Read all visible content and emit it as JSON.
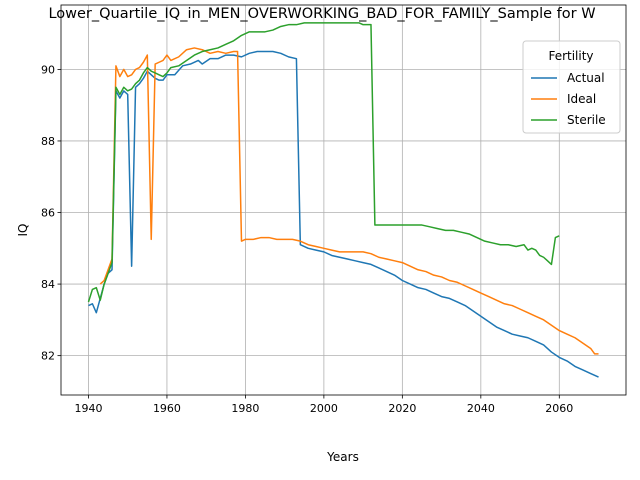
{
  "chart_data": {
    "type": "line",
    "title": "Lower_Quartile_IQ_in_MEN_OVERWORKING_BAD_FOR_FAMILY_Sample for W",
    "xlabel": "Years",
    "ylabel": "IQ",
    "xlim": [
      1933,
      2077
    ],
    "ylim": [
      80.9,
      91.8
    ],
    "xticks": [
      1940,
      1960,
      1980,
      2000,
      2020,
      2040,
      2060
    ],
    "yticks": [
      82,
      84,
      86,
      88,
      90
    ],
    "grid": true,
    "legend": {
      "title": "Fertility",
      "placement": "top-right"
    },
    "series": [
      {
        "name": "Actual",
        "color": "#1f77b4",
        "points": [
          [
            1940,
            83.4
          ],
          [
            1941,
            83.45
          ],
          [
            1942,
            83.2
          ],
          [
            1943,
            83.6
          ],
          [
            1944,
            84.0
          ],
          [
            1945,
            84.3
          ],
          [
            1946,
            84.4
          ],
          [
            1947,
            89.4
          ],
          [
            1948,
            89.2
          ],
          [
            1949,
            89.4
          ],
          [
            1950,
            89.3
          ],
          [
            1951,
            84.5
          ],
          [
            1952,
            89.5
          ],
          [
            1953,
            89.6
          ],
          [
            1954,
            89.75
          ],
          [
            1955,
            89.95
          ],
          [
            1956,
            89.85
          ],
          [
            1957,
            89.75
          ],
          [
            1958,
            89.7
          ],
          [
            1959,
            89.7
          ],
          [
            1960,
            89.85
          ],
          [
            1962,
            89.85
          ],
          [
            1964,
            90.1
          ],
          [
            1966,
            90.15
          ],
          [
            1968,
            90.25
          ],
          [
            1969,
            90.15
          ],
          [
            1971,
            90.3
          ],
          [
            1973,
            90.3
          ],
          [
            1975,
            90.4
          ],
          [
            1977,
            90.4
          ],
          [
            1979,
            90.35
          ],
          [
            1981,
            90.45
          ],
          [
            1983,
            90.5
          ],
          [
            1985,
            90.5
          ],
          [
            1987,
            90.5
          ],
          [
            1989,
            90.45
          ],
          [
            1991,
            90.35
          ],
          [
            1993,
            90.3
          ],
          [
            1994,
            85.1
          ],
          [
            1996,
            85.0
          ],
          [
            1998,
            84.95
          ],
          [
            2000,
            84.9
          ],
          [
            2002,
            84.8
          ],
          [
            2004,
            84.75
          ],
          [
            2006,
            84.7
          ],
          [
            2008,
            84.65
          ],
          [
            2010,
            84.6
          ],
          [
            2012,
            84.55
          ],
          [
            2014,
            84.45
          ],
          [
            2016,
            84.35
          ],
          [
            2018,
            84.25
          ],
          [
            2020,
            84.1
          ],
          [
            2022,
            84.0
          ],
          [
            2024,
            83.9
          ],
          [
            2026,
            83.85
          ],
          [
            2028,
            83.75
          ],
          [
            2030,
            83.65
          ],
          [
            2032,
            83.6
          ],
          [
            2034,
            83.5
          ],
          [
            2036,
            83.4
          ],
          [
            2038,
            83.25
          ],
          [
            2040,
            83.1
          ],
          [
            2042,
            82.95
          ],
          [
            2044,
            82.8
          ],
          [
            2046,
            82.7
          ],
          [
            2048,
            82.6
          ],
          [
            2050,
            82.55
          ],
          [
            2052,
            82.5
          ],
          [
            2054,
            82.4
          ],
          [
            2056,
            82.3
          ],
          [
            2058,
            82.1
          ],
          [
            2060,
            81.95
          ],
          [
            2062,
            81.85
          ],
          [
            2064,
            81.7
          ],
          [
            2066,
            81.6
          ],
          [
            2068,
            81.5
          ],
          [
            2070,
            81.4
          ]
        ]
      },
      {
        "name": "Ideal",
        "color": "#ff7f0e",
        "points": [
          [
            1943,
            84.0
          ],
          [
            1944,
            84.1
          ],
          [
            1945,
            84.4
          ],
          [
            1946,
            84.7
          ],
          [
            1947,
            90.1
          ],
          [
            1948,
            89.8
          ],
          [
            1949,
            90.0
          ],
          [
            1950,
            89.8
          ],
          [
            1951,
            89.85
          ],
          [
            1952,
            90.0
          ],
          [
            1953,
            90.05
          ],
          [
            1954,
            90.2
          ],
          [
            1955,
            90.4
          ],
          [
            1956,
            85.25
          ],
          [
            1957,
            90.15
          ],
          [
            1958,
            90.2
          ],
          [
            1959,
            90.25
          ],
          [
            1960,
            90.4
          ],
          [
            1961,
            90.25
          ],
          [
            1963,
            90.35
          ],
          [
            1965,
            90.55
          ],
          [
            1967,
            90.6
          ],
          [
            1969,
            90.55
          ],
          [
            1971,
            90.45
          ],
          [
            1973,
            90.5
          ],
          [
            1975,
            90.45
          ],
          [
            1977,
            90.5
          ],
          [
            1978,
            90.5
          ],
          [
            1979,
            85.2
          ],
          [
            1980,
            85.25
          ],
          [
            1982,
            85.25
          ],
          [
            1984,
            85.3
          ],
          [
            1986,
            85.3
          ],
          [
            1988,
            85.25
          ],
          [
            1990,
            85.25
          ],
          [
            1992,
            85.25
          ],
          [
            1994,
            85.2
          ],
          [
            1996,
            85.1
          ],
          [
            1998,
            85.05
          ],
          [
            2000,
            85.0
          ],
          [
            2002,
            84.95
          ],
          [
            2004,
            84.9
          ],
          [
            2006,
            84.9
          ],
          [
            2008,
            84.9
          ],
          [
            2010,
            84.9
          ],
          [
            2012,
            84.85
          ],
          [
            2014,
            84.75
          ],
          [
            2016,
            84.7
          ],
          [
            2018,
            84.65
          ],
          [
            2020,
            84.6
          ],
          [
            2022,
            84.5
          ],
          [
            2024,
            84.4
          ],
          [
            2026,
            84.35
          ],
          [
            2028,
            84.25
          ],
          [
            2030,
            84.2
          ],
          [
            2032,
            84.1
          ],
          [
            2034,
            84.05
          ],
          [
            2036,
            83.95
          ],
          [
            2038,
            83.85
          ],
          [
            2040,
            83.75
          ],
          [
            2042,
            83.65
          ],
          [
            2044,
            83.55
          ],
          [
            2046,
            83.45
          ],
          [
            2048,
            83.4
          ],
          [
            2050,
            83.3
          ],
          [
            2052,
            83.2
          ],
          [
            2054,
            83.1
          ],
          [
            2056,
            83.0
          ],
          [
            2058,
            82.85
          ],
          [
            2060,
            82.7
          ],
          [
            2062,
            82.6
          ],
          [
            2064,
            82.5
          ],
          [
            2066,
            82.35
          ],
          [
            2068,
            82.2
          ],
          [
            2069,
            82.05
          ],
          [
            2070,
            82.05
          ]
        ]
      },
      {
        "name": "Sterile",
        "color": "#2ca02c",
        "points": [
          [
            1940,
            83.5
          ],
          [
            1941,
            83.85
          ],
          [
            1942,
            83.9
          ],
          [
            1943,
            83.55
          ],
          [
            1944,
            84.0
          ],
          [
            1945,
            84.3
          ],
          [
            1946,
            84.6
          ],
          [
            1947,
            89.5
          ],
          [
            1948,
            89.3
          ],
          [
            1949,
            89.5
          ],
          [
            1950,
            89.4
          ],
          [
            1951,
            89.45
          ],
          [
            1952,
            89.6
          ],
          [
            1953,
            89.7
          ],
          [
            1954,
            89.9
          ],
          [
            1955,
            90.05
          ],
          [
            1956,
            89.95
          ],
          [
            1957,
            89.9
          ],
          [
            1958,
            89.85
          ],
          [
            1959,
            89.8
          ],
          [
            1960,
            89.9
          ],
          [
            1961,
            90.05
          ],
          [
            1963,
            90.1
          ],
          [
            1965,
            90.25
          ],
          [
            1967,
            90.4
          ],
          [
            1969,
            90.5
          ],
          [
            1971,
            90.55
          ],
          [
            1973,
            90.6
          ],
          [
            1975,
            90.7
          ],
          [
            1977,
            90.8
          ],
          [
            1979,
            90.95
          ],
          [
            1981,
            91.05
          ],
          [
            1983,
            91.05
          ],
          [
            1985,
            91.05
          ],
          [
            1987,
            91.1
          ],
          [
            1989,
            91.2
          ],
          [
            1991,
            91.25
          ],
          [
            1993,
            91.25
          ],
          [
            1995,
            91.3
          ],
          [
            1997,
            91.3
          ],
          [
            1999,
            91.3
          ],
          [
            2001,
            91.3
          ],
          [
            2003,
            91.3
          ],
          [
            2005,
            91.3
          ],
          [
            2007,
            91.3
          ],
          [
            2009,
            91.3
          ],
          [
            2010,
            91.25
          ],
          [
            2012,
            91.25
          ],
          [
            2013,
            85.65
          ],
          [
            2015,
            85.65
          ],
          [
            2017,
            85.65
          ],
          [
            2019,
            85.65
          ],
          [
            2021,
            85.65
          ],
          [
            2023,
            85.65
          ],
          [
            2025,
            85.65
          ],
          [
            2027,
            85.6
          ],
          [
            2029,
            85.55
          ],
          [
            2031,
            85.5
          ],
          [
            2033,
            85.5
          ],
          [
            2035,
            85.45
          ],
          [
            2037,
            85.4
          ],
          [
            2039,
            85.3
          ],
          [
            2041,
            85.2
          ],
          [
            2043,
            85.15
          ],
          [
            2045,
            85.1
          ],
          [
            2047,
            85.1
          ],
          [
            2049,
            85.05
          ],
          [
            2051,
            85.1
          ],
          [
            2052,
            84.95
          ],
          [
            2053,
            85.0
          ],
          [
            2054,
            84.95
          ],
          [
            2055,
            84.8
          ],
          [
            2056,
            84.75
          ],
          [
            2057,
            84.65
          ],
          [
            2058,
            84.55
          ],
          [
            2059,
            85.3
          ],
          [
            2060,
            85.35
          ]
        ]
      }
    ]
  }
}
